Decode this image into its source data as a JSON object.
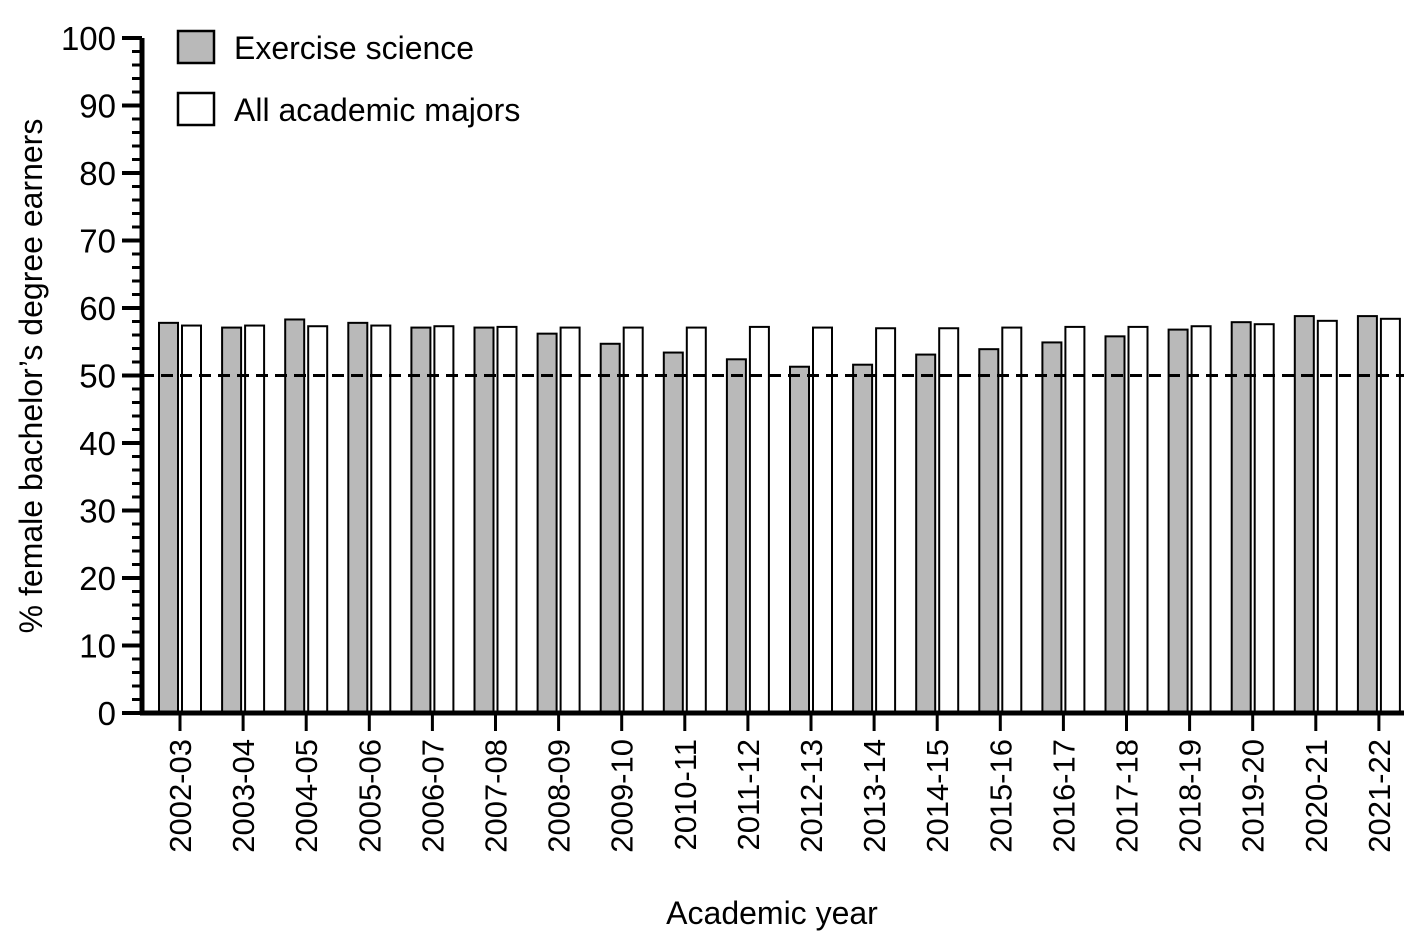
{
  "chart_data": {
    "type": "bar",
    "title": "",
    "xlabel": "Academic year",
    "ylabel": "% female bachelor’s degree earners",
    "ylim": [
      0,
      100
    ],
    "yticks": [
      0,
      10,
      20,
      30,
      40,
      50,
      60,
      70,
      80,
      90,
      100
    ],
    "grid": false,
    "legend_position": "top-left",
    "reference_line": {
      "value": 50,
      "style": "dashed"
    },
    "categories": [
      "2002-03",
      "2003-04",
      "2004-05",
      "2005-06",
      "2006-07",
      "2007-08",
      "2008-09",
      "2009-10",
      "2010-11",
      "2011-12",
      "2012-13",
      "2013-14",
      "2014-15",
      "2015-16",
      "2016-17",
      "2017-18",
      "2018-19",
      "2019-20",
      "2020-21",
      "2021-22"
    ],
    "series": [
      {
        "name": "Exercise science",
        "color": "#b9b9b9",
        "values": [
          57.8,
          57.1,
          58.3,
          57.8,
          57.1,
          57.1,
          56.2,
          54.7,
          53.4,
          52.4,
          51.3,
          51.6,
          53.1,
          53.9,
          54.9,
          55.8,
          56.8,
          57.9,
          58.8,
          58.8
        ]
      },
      {
        "name": "All academic majors",
        "color": "#ffffff",
        "values": [
          57.4,
          57.4,
          57.3,
          57.4,
          57.3,
          57.2,
          57.1,
          57.1,
          57.1,
          57.2,
          57.1,
          57.0,
          57.0,
          57.1,
          57.2,
          57.2,
          57.3,
          57.6,
          58.1,
          58.4
        ]
      }
    ]
  }
}
